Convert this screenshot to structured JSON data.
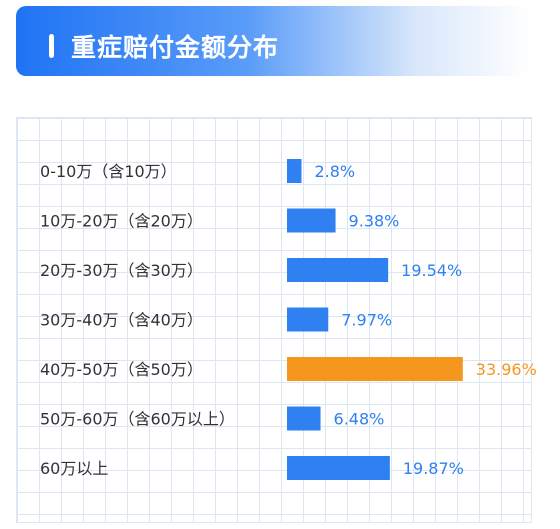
{
  "header": {
    "title": "重症赔付金额分布"
  },
  "chart_data": {
    "type": "bar",
    "orientation": "horizontal",
    "title": "重症赔付金额分布",
    "categories": [
      "0-10万（含10万）",
      "10万-20万（含20万）",
      "20万-30万（含30万）",
      "30万-40万（含40万）",
      "40万-50万（含50万）",
      "50万-60万（含60万以上）",
      "60万以上"
    ],
    "values": [
      2.8,
      9.38,
      19.54,
      7.97,
      33.96,
      6.48,
      19.87
    ],
    "value_labels": [
      "2.8%",
      "9.38%",
      "19.54%",
      "7.97%",
      "33.96%",
      "6.48%",
      "19.87%"
    ],
    "colors": {
      "default_bar": "#2f80f0",
      "highlight_bar": "#f5961e",
      "default_label": "#2f80f0",
      "highlight_label": "#f5961e"
    },
    "highlight_index": 4,
    "grid": true,
    "xlim": [
      0,
      34
    ]
  }
}
